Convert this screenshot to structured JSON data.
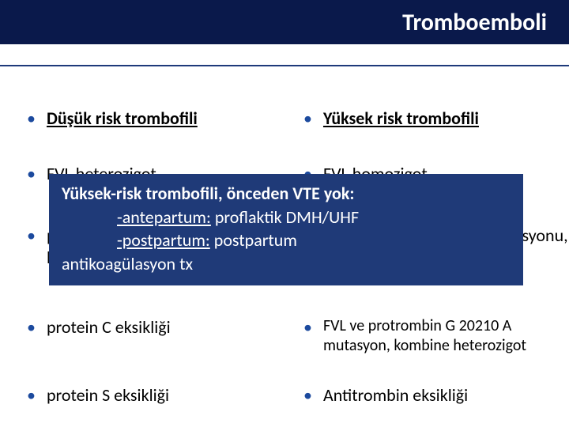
{
  "colors": {
    "title_band_bg": "#0a194b",
    "title_text": "#ffffff",
    "rule": "#1e3a7a",
    "bullet": "#1c4a9e",
    "body_text": "#000000",
    "overlay_bg": "#1f3a78",
    "overlay_text": "#ffffff",
    "page_bg": "#ffffff"
  },
  "title": "Tromboemboli",
  "left": {
    "heading": "Düşük risk trombofili",
    "items": [
      "FVL heterozigot",
      "protrombin G 20210 A mutasyonu, heterozigot",
      "protein C eksikliği",
      "protein S eksikliği"
    ]
  },
  "right": {
    "heading": "Yüksek risk trombofili",
    "items": [
      "FVL homozigot",
      "protrombin G 20210 A mutasyonu, homozigot",
      "FVL ve protrombin G 20210 A mutasyon, kombine heterozigot",
      "Antitrombin eksikliği"
    ]
  },
  "overlay": {
    "line1_bold": "Yüksek-risk trombofili, önceden VTE yok:",
    "line2_label": "-antepartum:",
    "line2_rest": " proflaktik DMH/UHF",
    "line3_label": "-postpartum:",
    "line3_rest": " postpartum",
    "line4": "antikoagülasyon tx"
  },
  "typography": {
    "title_fontsize": 30,
    "body_fontsize": 22,
    "overlay_fontsize": 22
  }
}
